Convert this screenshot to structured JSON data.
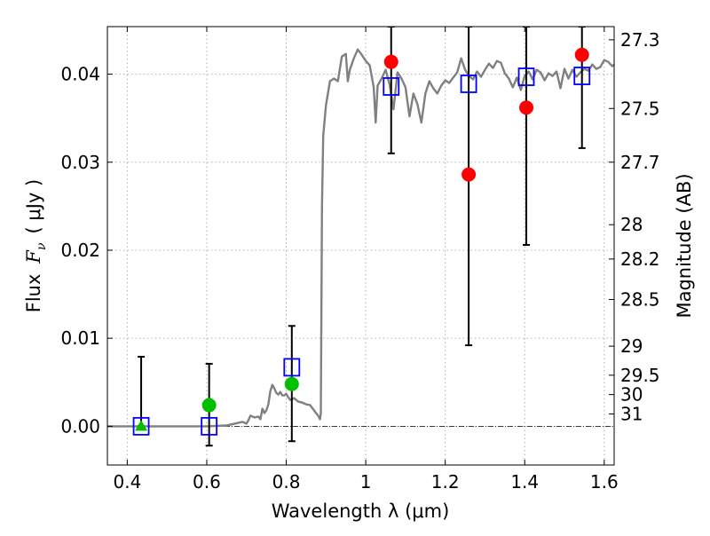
{
  "chart_data": {
    "type": "scatter",
    "title": "",
    "xlabel": "Wavelength  λ (μm)",
    "ylabel_parts": [
      "Flux",
      "F",
      "ν",
      "( μJy )"
    ],
    "y2label": "Magnitude (AB)",
    "xlim": [
      0.35,
      1.625
    ],
    "ylim": [
      -0.0044,
      0.0454
    ],
    "grid": true,
    "x_ticks": [
      0.4,
      0.6,
      0.8,
      1.0,
      1.2,
      1.4,
      1.6
    ],
    "x_tick_labels": [
      "0.4",
      "0.6",
      "0.8",
      "1",
      "1.2",
      "1.4",
      "1.6"
    ],
    "y_ticks": [
      0.0,
      0.01,
      0.02,
      0.03,
      0.04
    ],
    "y_tick_labels": [
      "0.00",
      "0.01",
      "0.02",
      "0.03",
      "0.04"
    ],
    "magnitude_ticks": [
      {
        "label": "27.3",
        "flux": 0.0439
      },
      {
        "label": "27.5",
        "flux": 0.0361
      },
      {
        "label": "27.7",
        "flux": 0.03
      },
      {
        "label": "28",
        "flux": 0.0229
      },
      {
        "label": "28.2",
        "flux": 0.019
      },
      {
        "label": "28.5",
        "flux": 0.0144
      },
      {
        "label": "29",
        "flux": 0.0091
      },
      {
        "label": "29.5",
        "flux": 0.0058
      },
      {
        "label": "30",
        "flux": 0.0036
      },
      {
        "label": "31",
        "flux": 0.0014
      }
    ],
    "colors": {
      "model": "#808080",
      "model_point": "#0000ff",
      "optical": "#00c000",
      "infrared": "#ff0000",
      "errorbar": "#000000",
      "zero_line": "#000000",
      "grid": "#b0b0b0"
    },
    "series": [
      {
        "kind": "model_spectrum",
        "points": [
          [
            0.35,
            0.0
          ],
          [
            0.45,
            0.0
          ],
          [
            0.55,
            0.0
          ],
          [
            0.6,
            0.0
          ],
          [
            0.65,
            0.0001
          ],
          [
            0.67,
            0.0003
          ],
          [
            0.69,
            0.0005
          ],
          [
            0.7,
            0.0003
          ],
          [
            0.705,
            0.0007
          ],
          [
            0.71,
            0.0012
          ],
          [
            0.72,
            0.001
          ],
          [
            0.73,
            0.0011
          ],
          [
            0.735,
            0.0008
          ],
          [
            0.74,
            0.002
          ],
          [
            0.745,
            0.0015
          ],
          [
            0.75,
            0.0018
          ],
          [
            0.755,
            0.0025
          ],
          [
            0.76,
            0.004
          ],
          [
            0.765,
            0.0047
          ],
          [
            0.77,
            0.0043
          ],
          [
            0.775,
            0.0038
          ],
          [
            0.78,
            0.0036
          ],
          [
            0.785,
            0.0039
          ],
          [
            0.79,
            0.0035
          ],
          [
            0.795,
            0.0035
          ],
          [
            0.8,
            0.0037
          ],
          [
            0.805,
            0.0033
          ],
          [
            0.81,
            0.003
          ],
          [
            0.82,
            0.0032
          ],
          [
            0.83,
            0.0028
          ],
          [
            0.84,
            0.0027
          ],
          [
            0.85,
            0.0025
          ],
          [
            0.86,
            0.0024
          ],
          [
            0.87,
            0.0018
          ],
          [
            0.875,
            0.0015
          ],
          [
            0.88,
            0.0012
          ],
          [
            0.885,
            0.0008
          ],
          [
            0.887,
            0.0015
          ],
          [
            0.89,
            0.025
          ],
          [
            0.893,
            0.033
          ],
          [
            0.9,
            0.0365
          ],
          [
            0.91,
            0.0392
          ],
          [
            0.92,
            0.0395
          ],
          [
            0.93,
            0.0392
          ],
          [
            0.94,
            0.042
          ],
          [
            0.95,
            0.0423
          ],
          [
            0.955,
            0.0392
          ],
          [
            0.96,
            0.0405
          ],
          [
            0.97,
            0.0418
          ],
          [
            0.98,
            0.0428
          ],
          [
            0.99,
            0.0422
          ],
          [
            1.0,
            0.0415
          ],
          [
            1.01,
            0.041
          ],
          [
            1.02,
            0.0385
          ],
          [
            1.025,
            0.0345
          ],
          [
            1.03,
            0.0387
          ],
          [
            1.04,
            0.0395
          ],
          [
            1.05,
            0.0405
          ],
          [
            1.06,
            0.0388
          ],
          [
            1.07,
            0.036
          ],
          [
            1.08,
            0.0402
          ],
          [
            1.09,
            0.0395
          ],
          [
            1.1,
            0.0385
          ],
          [
            1.11,
            0.0352
          ],
          [
            1.12,
            0.0378
          ],
          [
            1.13,
            0.0366
          ],
          [
            1.14,
            0.0345
          ],
          [
            1.15,
            0.0378
          ],
          [
            1.16,
            0.0392
          ],
          [
            1.17,
            0.0384
          ],
          [
            1.18,
            0.0378
          ],
          [
            1.19,
            0.0387
          ],
          [
            1.2,
            0.0393
          ],
          [
            1.21,
            0.039
          ],
          [
            1.22,
            0.0396
          ],
          [
            1.23,
            0.0402
          ],
          [
            1.24,
            0.0418
          ],
          [
            1.25,
            0.0405
          ],
          [
            1.26,
            0.0398
          ],
          [
            1.27,
            0.0394
          ],
          [
            1.28,
            0.0403
          ],
          [
            1.29,
            0.0397
          ],
          [
            1.3,
            0.0405
          ],
          [
            1.31,
            0.0412
          ],
          [
            1.32,
            0.0407
          ],
          [
            1.33,
            0.0415
          ],
          [
            1.34,
            0.0413
          ],
          [
            1.35,
            0.0401
          ],
          [
            1.36,
            0.0395
          ],
          [
            1.37,
            0.0385
          ],
          [
            1.38,
            0.0396
          ],
          [
            1.39,
            0.0382
          ],
          [
            1.4,
            0.0398
          ],
          [
            1.41,
            0.0403
          ],
          [
            1.42,
            0.0394
          ],
          [
            1.43,
            0.0405
          ],
          [
            1.44,
            0.0402
          ],
          [
            1.45,
            0.0393
          ],
          [
            1.46,
            0.0401
          ],
          [
            1.47,
            0.0398
          ],
          [
            1.48,
            0.0403
          ],
          [
            1.49,
            0.0384
          ],
          [
            1.5,
            0.0406
          ],
          [
            1.51,
            0.0395
          ],
          [
            1.52,
            0.0405
          ],
          [
            1.53,
            0.0397
          ],
          [
            1.54,
            0.0402
          ],
          [
            1.55,
            0.0406
          ],
          [
            1.56,
            0.0404
          ],
          [
            1.57,
            0.0411
          ],
          [
            1.58,
            0.0406
          ],
          [
            1.59,
            0.0408
          ],
          [
            1.6,
            0.0416
          ],
          [
            1.61,
            0.0414
          ],
          [
            1.62,
            0.0409
          ],
          [
            1.625,
            0.0411
          ]
        ]
      },
      {
        "kind": "model_photometry",
        "marker": "open-square",
        "points": [
          {
            "x": 0.435,
            "y": 0.0
          },
          {
            "x": 0.606,
            "y": 0.0
          },
          {
            "x": 0.814,
            "y": 0.0067
          },
          {
            "x": 1.064,
            "y": 0.0386
          },
          {
            "x": 1.259,
            "y": 0.0389
          },
          {
            "x": 1.404,
            "y": 0.0397
          },
          {
            "x": 1.544,
            "y": 0.0398
          }
        ]
      },
      {
        "kind": "observed_optical",
        "marker": "filled-circle",
        "points": [
          {
            "x": 0.435,
            "y": 0.0,
            "ymin": 0.0,
            "ymax": 0.0079,
            "marker": "triangle"
          },
          {
            "x": 0.606,
            "y": 0.0024,
            "ymin": -0.0022,
            "ymax": 0.0071
          },
          {
            "x": 0.814,
            "y": 0.0048,
            "ymin": -0.0017,
            "ymax": 0.0114
          }
        ]
      },
      {
        "kind": "observed_infrared",
        "marker": "filled-circle",
        "points": [
          {
            "x": 1.064,
            "y": 0.0414,
            "ymin": 0.031,
            "ymax": 0.0454
          },
          {
            "x": 1.259,
            "y": 0.0286,
            "ymin": 0.0092,
            "ymax": 0.0454
          },
          {
            "x": 1.404,
            "y": 0.0362,
            "ymin": 0.0206,
            "ymax": 0.0454
          },
          {
            "x": 1.544,
            "y": 0.0422,
            "ymin": 0.0316,
            "ymax": 0.0454
          }
        ]
      }
    ]
  }
}
